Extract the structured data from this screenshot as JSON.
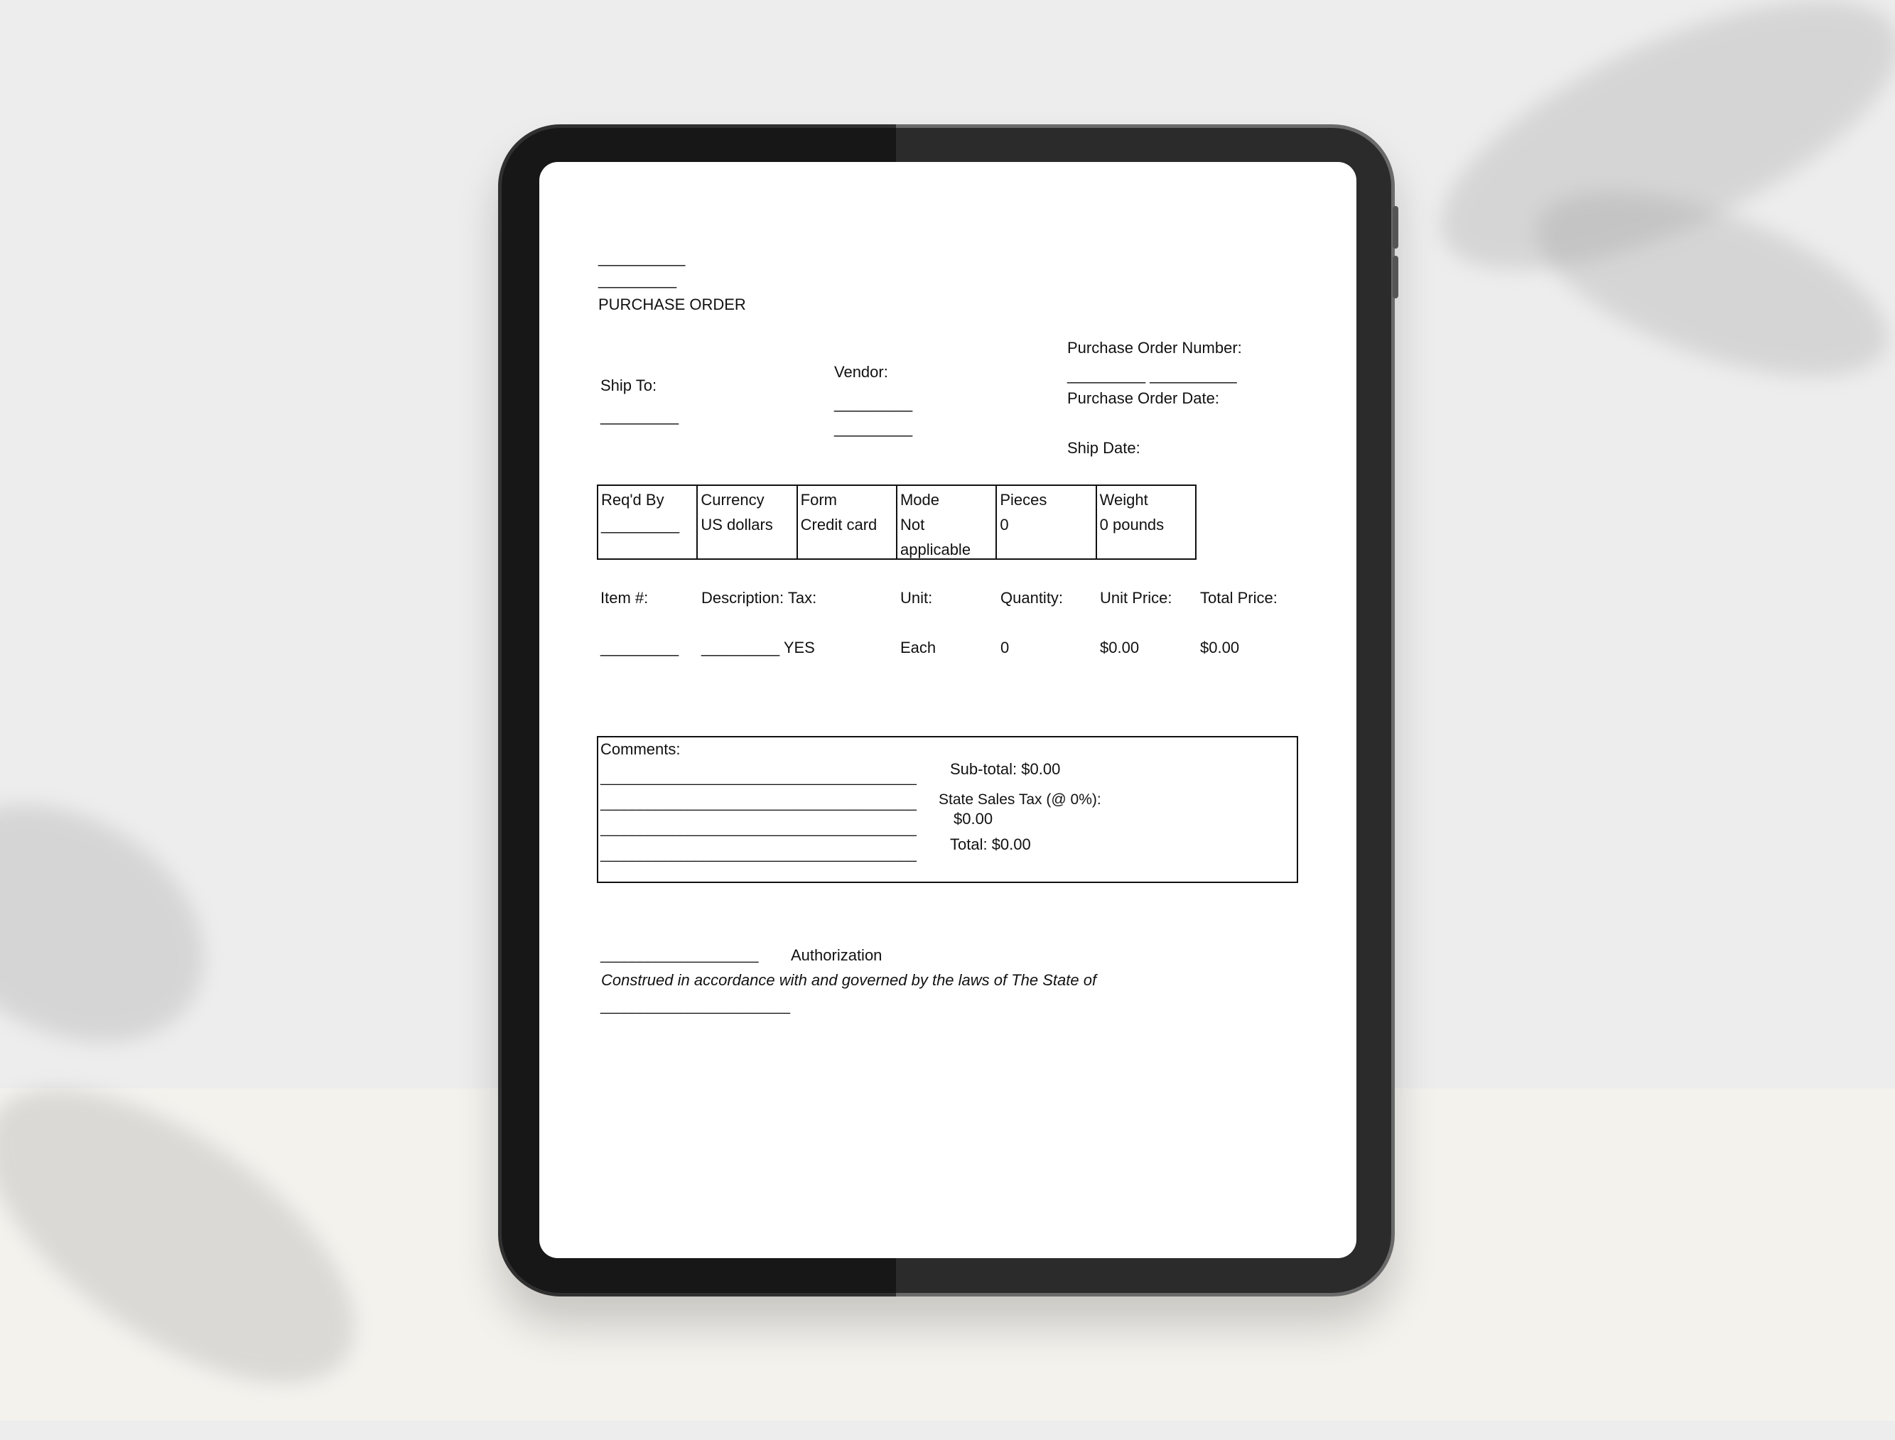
{
  "document": {
    "header_blank_1": "__________",
    "header_blank_2": "_________",
    "title": "PURCHASE ORDER",
    "ship_to": {
      "label": "Ship To:",
      "value": "_________"
    },
    "vendor": {
      "label": "Vendor:",
      "line1": "_________",
      "line2": "_________"
    },
    "po_number": {
      "label": "Purchase Order Number:",
      "value": "_________ __________"
    },
    "po_date": {
      "label": "Purchase Order Date:"
    },
    "ship_date": {
      "label": "Ship Date:"
    },
    "info_table": [
      {
        "label": "Req'd By",
        "value": "_________"
      },
      {
        "label": "Currency",
        "value": "US dollars"
      },
      {
        "label": "Form",
        "value": "Credit card"
      },
      {
        "label": "Mode",
        "value": "Not applicable"
      },
      {
        "label": "Pieces",
        "value": "0"
      },
      {
        "label": "Weight",
        "value": "0 pounds"
      }
    ],
    "items": {
      "headers": [
        "Item #:",
        "Description: Tax:",
        "Unit:",
        "Quantity:",
        "Unit Price:",
        "Total Price:"
      ],
      "row": [
        "_________",
        "_________ YES",
        "Each",
        "0",
        "$0.00",
        "$0.00"
      ]
    },
    "comments": {
      "label": "Comments:",
      "line": "________________________________________",
      "subtotal": "Sub-total: $0.00",
      "tax_label": "State Sales Tax (@ 0%):",
      "tax_value": "$0.00",
      "total": "Total: $0.00"
    },
    "authorization": {
      "line": "____________________",
      "label": "Authorization"
    },
    "governing_law": "Construed in accordance with and governed by the laws of The State of",
    "governing_blank": "________________________"
  }
}
